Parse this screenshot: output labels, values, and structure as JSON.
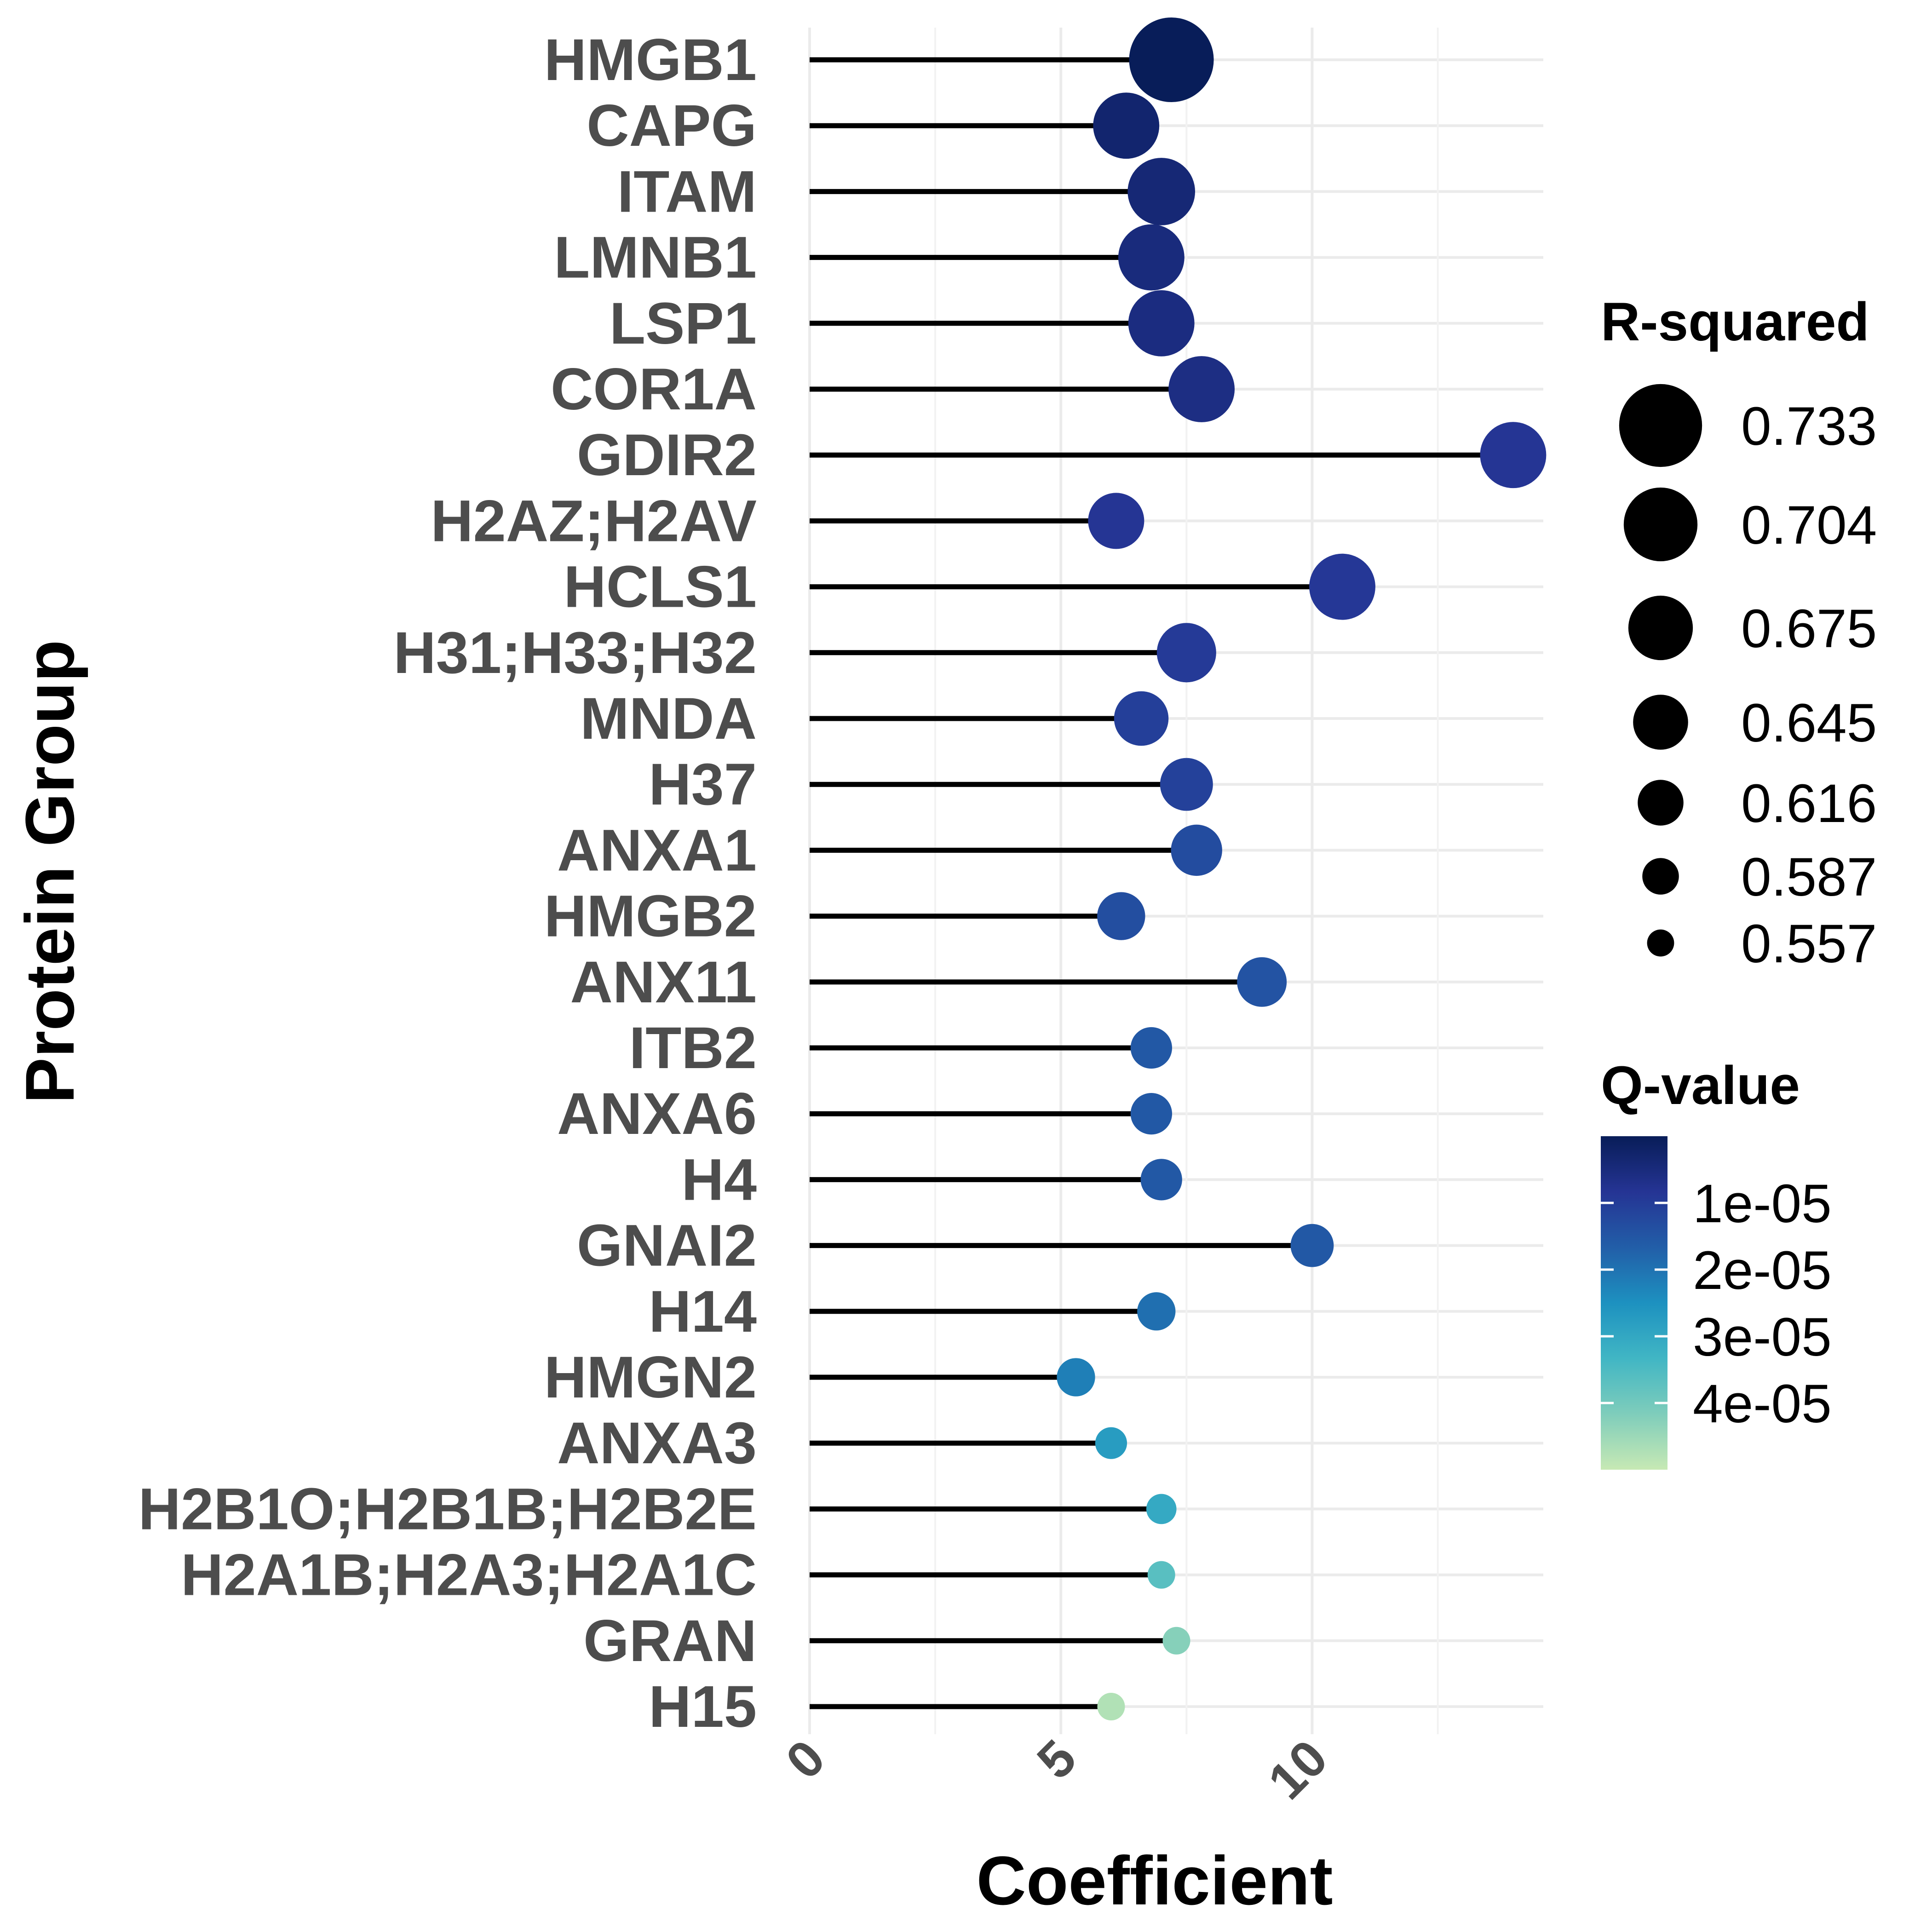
{
  "chart_data": {
    "type": "lollipop",
    "xlabel": "Coefficient",
    "ylabel": "Protein Group",
    "xlim": [
      0,
      14.6
    ],
    "x_ticks": [
      0,
      5,
      10
    ],
    "grid": true,
    "categories": [
      "HMGB1",
      "CAPG",
      "ITAM",
      "LMNB1",
      "LSP1",
      "COR1A",
      "GDIR2",
      "H2AZ;H2AV",
      "HCLS1",
      "H31;H33;H32",
      "MNDA",
      "H37",
      "ANXA1",
      "HMGB2",
      "ANX11",
      "ITB2",
      "ANXA6",
      "H4",
      "GNAI2",
      "H14",
      "HMGN2",
      "ANXA3",
      "H2B1O;H2B1B;H2B2E",
      "H2A1B;H2A3;H2A1C",
      "GRAN",
      "H15"
    ],
    "coefficient": [
      7.2,
      6.3,
      7.0,
      6.8,
      7.0,
      7.8,
      14.0,
      6.1,
      10.6,
      7.5,
      6.6,
      7.5,
      7.7,
      6.2,
      9.0,
      6.8,
      6.8,
      7.0,
      10.0,
      6.9,
      5.3,
      6.0,
      7.0,
      7.0,
      7.3,
      6.0
    ],
    "r_squared": [
      0.733,
      0.676,
      0.68,
      0.676,
      0.676,
      0.676,
      0.676,
      0.645,
      0.676,
      0.655,
      0.64,
      0.635,
      0.63,
      0.62,
      0.625,
      0.6,
      0.6,
      0.6,
      0.605,
      0.59,
      0.59,
      0.57,
      0.565,
      0.557,
      0.55,
      0.53
    ],
    "q_value": [
      1e-07,
      3e-06,
      4e-06,
      5e-06,
      5.5e-06,
      6e-06,
      8.5e-06,
      8.5e-06,
      9e-06,
      9.5e-06,
      1.05e-05,
      1.1e-05,
      1.3e-05,
      1.35e-05,
      1.45e-05,
      1.55e-05,
      1.55e-05,
      1.55e-05,
      1.55e-05,
      1.95e-05,
      2.2e-05,
      2.75e-05,
      3.05e-05,
      3.65e-05,
      4.25e-05,
      4.75e-05
    ],
    "legend_size": {
      "title": "R-squared",
      "values": [
        0.733,
        0.704,
        0.675,
        0.645,
        0.616,
        0.587,
        0.557
      ],
      "labels": [
        "0.733",
        "0.704",
        "0.675",
        "0.645",
        "0.616",
        "0.587",
        "0.557"
      ]
    },
    "legend_color": {
      "title": "Q-value",
      "range": [
        0.0,
        5e-05
      ],
      "ticks": [
        1e-05,
        2e-05,
        3e-05,
        4e-05
      ],
      "tick_labels": [
        "1e-05",
        "2e-05",
        "3e-05",
        "4e-05"
      ],
      "colors": [
        "#081d58",
        "#253494",
        "#225ea8",
        "#1d91c0",
        "#41b6c4",
        "#7fcdbb",
        "#c7e9b4"
      ]
    },
    "legend_placement": "right"
  }
}
